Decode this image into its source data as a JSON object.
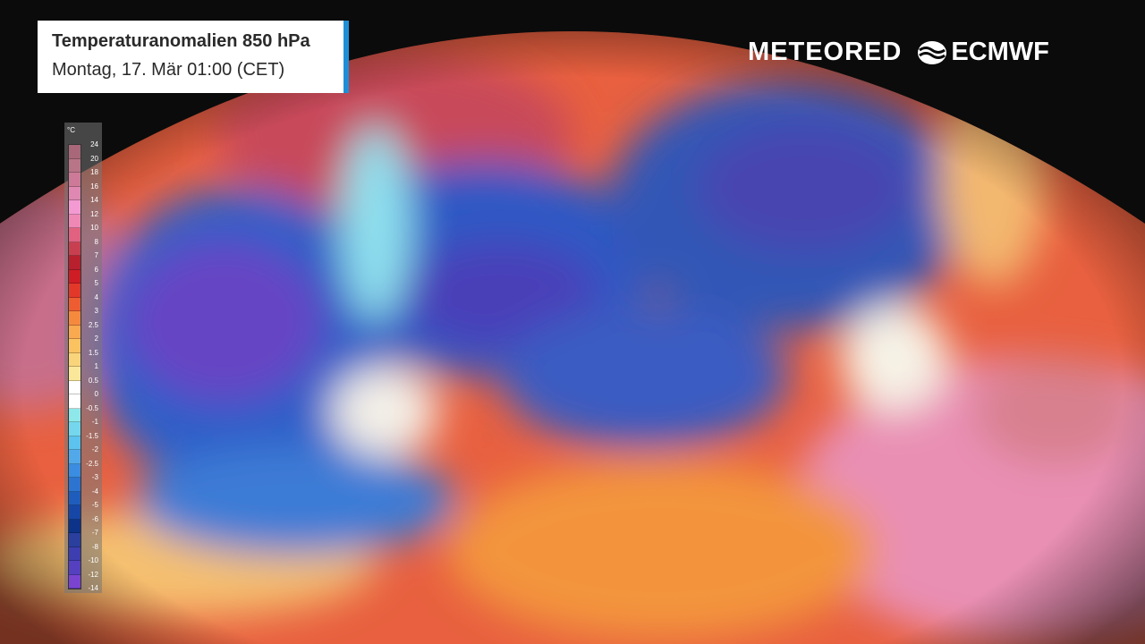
{
  "header": {
    "title": "Temperaturanomalien 850 hPa",
    "subtitle": "Montag, 17. Mär 01:00 (CET)"
  },
  "logos": {
    "meteored": "METEORED",
    "ecmwf": "ECMWF"
  },
  "legend": {
    "unit": "°C",
    "labels": [
      "24",
      "20",
      "18",
      "16",
      "14",
      "12",
      "10",
      "8",
      "7",
      "6",
      "5",
      "4",
      "3",
      "2.5",
      "2",
      "1.5",
      "1",
      "0.5",
      "0",
      "-0.5",
      "-1",
      "-1.5",
      "-2",
      "-2.5",
      "-3",
      "-4",
      "-5",
      "-6",
      "-7",
      "-8",
      "-10",
      "-12",
      "-14"
    ],
    "colors": [
      "#a8687a",
      "#b87588",
      "#cc7a98",
      "#de88b2",
      "#f39ad2",
      "#ef88b4",
      "#e06280",
      "#c8404f",
      "#b8202e",
      "#cf1d25",
      "#e2382a",
      "#ee5d31",
      "#f58a3e",
      "#f9a950",
      "#fbc261",
      "#fad47b",
      "#fbe79a",
      "#ffffff",
      "#ffffff",
      "#8ee8ea",
      "#74d7ee",
      "#5cc2ee",
      "#52a9ea",
      "#3a8de0",
      "#2c74d0",
      "#1f5dbd",
      "#1647a6",
      "#0d3388",
      "#2a3f9e",
      "#3d3eb0",
      "#5540c0",
      "#7a44d0",
      "#a14fe0"
    ]
  },
  "map": {
    "colors": {
      "background": "#0b0b0b",
      "warm": "#e04a3a",
      "hot": "#ea8fb0",
      "cold": "#2f5fc8",
      "very_cold": "#6a45c8",
      "neutral": "#f3f0e8",
      "orange": "#f29a4a"
    }
  }
}
